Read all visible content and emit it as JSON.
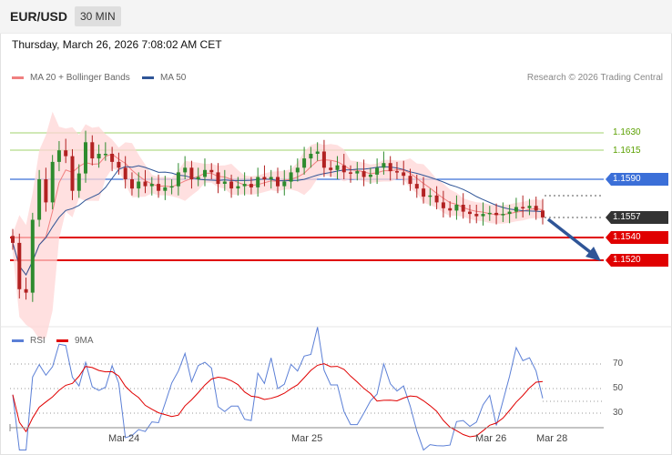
{
  "header": {
    "symbol": "EUR/USD",
    "timeframe": "30 MIN"
  },
  "datetime": "Thursday, March 26, 2026 7:08:02 AM CET",
  "legend": {
    "ma20": {
      "label": "MA 20 + Bollinger Bands",
      "color": "#f08080"
    },
    "ma50": {
      "label": "MA 50",
      "color": "#2f5597"
    }
  },
  "credit": "Research © 2026 Trading Central",
  "levels": {
    "r2": "1.1630",
    "r1": "1.1615",
    "pivot": "1.1590",
    "last": "1.1557",
    "s1": "1.1540",
    "s2": "1.1520"
  },
  "rsi_panel": {
    "rsi_label": "RSI",
    "ma_label": "9MA",
    "rsi_color": "#5b7fd6",
    "ma_color": "#e00000",
    "ticks": [
      "70",
      "50",
      "30"
    ]
  },
  "x_axis": {
    "labels": [
      "Mar 24",
      "Mar 25",
      "Mar 26",
      "Mar 28"
    ]
  },
  "colors": {
    "bull": "#2e8b2e",
    "bear": "#b22222",
    "band": "#ffd6d6",
    "pivot": "#3b6fd8",
    "support": "#e00000",
    "last": "#333333",
    "arrow": "#2f5597"
  },
  "chart_data": {
    "type": "candlestick",
    "y_range": [
      1.148,
      1.168
    ],
    "closes": [
      1.1535,
      1.1495,
      1.1492,
      1.1555,
      1.159,
      1.157,
      1.1605,
      1.1615,
      1.161,
      1.158,
      1.1595,
      1.1622,
      1.1608,
      1.1612,
      1.1612,
      1.1605,
      1.16,
      1.159,
      1.1582,
      1.1588,
      1.1584,
      1.1586,
      1.158,
      1.1583,
      1.1584,
      1.1596,
      1.16,
      1.159,
      1.1592,
      1.1598,
      1.1596,
      1.1586,
      1.1588,
      1.1582,
      1.1584,
      1.1586,
      1.1583,
      1.1592,
      1.159,
      1.1592,
      1.1584,
      1.1588,
      1.1596,
      1.16,
      1.1608,
      1.1612,
      1.1614,
      1.16,
      1.1598,
      1.1602,
      1.1596,
      1.1595,
      1.1597,
      1.1592,
      1.1594,
      1.16,
      1.1604,
      1.1597,
      1.1596,
      1.1593,
      1.1586,
      1.1582,
      1.1575,
      1.1576,
      1.157,
      1.1565,
      1.1563,
      1.1568,
      1.1562,
      1.156,
      1.1558,
      1.156,
      1.1561,
      1.1559,
      1.156,
      1.1562,
      1.1566,
      1.1565,
      1.1567,
      1.1563,
      1.1557
    ],
    "ma20_level": 1.159,
    "rsi_ticks": [
      70,
      50,
      30
    ],
    "rsi_range": [
      20,
      75
    ]
  }
}
